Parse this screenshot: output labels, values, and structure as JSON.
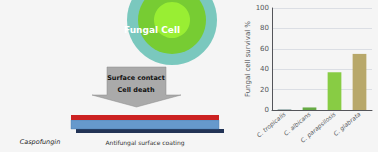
{
  "chart_data": {
    "type": "bar",
    "y_label": "Fungal cell survival %",
    "categories": [
      "C. tropicalis",
      "C. albicans",
      "C. parapsilosis",
      "C. glabrata"
    ],
    "values": [
      1.0,
      2.5,
      37.0,
      55.0
    ],
    "colors": [
      "#aabbbb",
      "#66aa44",
      "#88cc44",
      "#b8a86a"
    ],
    "ylim": [
      0,
      100
    ],
    "yticks": [
      0,
      20,
      40,
      60,
      80,
      100
    ],
    "grid": true,
    "annotations": [
      "Fungal Cell",
      "Surface contact",
      "Cell death",
      "Antifungal surface coating",
      "Caspofungin"
    ]
  }
}
